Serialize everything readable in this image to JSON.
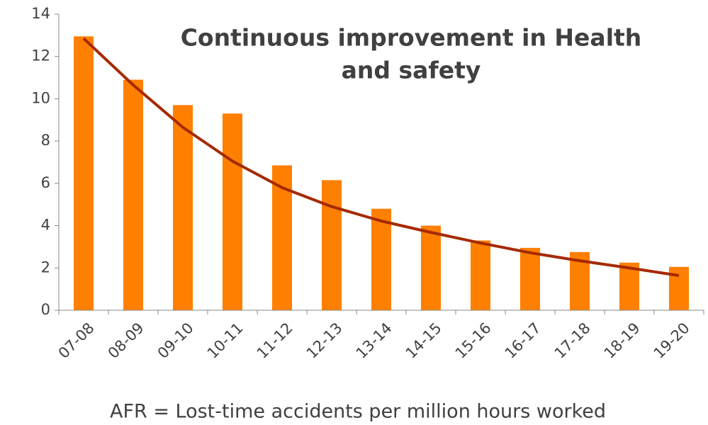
{
  "chart_data": {
    "type": "bar",
    "title": [
      "Continuous improvement in Health",
      "and safety"
    ],
    "caption": "AFR = Lost-time accidents per million hours worked",
    "categories": [
      "07-08",
      "08-09",
      "09-10",
      "10-11",
      "11-12",
      "12-13",
      "13-14",
      "14-15",
      "15-16",
      "16-17",
      "17-18",
      "18-19",
      "19-20"
    ],
    "values": [
      12.95,
      10.9,
      9.7,
      9.3,
      6.85,
      6.15,
      4.8,
      4.0,
      3.3,
      2.95,
      2.75,
      2.25,
      2.05
    ],
    "color": "#ff7f00",
    "trend": {
      "color": "#a52a00",
      "values": [
        12.85,
        10.65,
        8.65,
        7.05,
        5.8,
        4.9,
        4.22,
        3.68,
        3.18,
        2.72,
        2.34,
        2.0,
        1.64
      ]
    },
    "ylim": [
      0,
      14
    ],
    "yticks": [
      0,
      2,
      4,
      6,
      8,
      10,
      12,
      14
    ],
    "grid": false
  }
}
